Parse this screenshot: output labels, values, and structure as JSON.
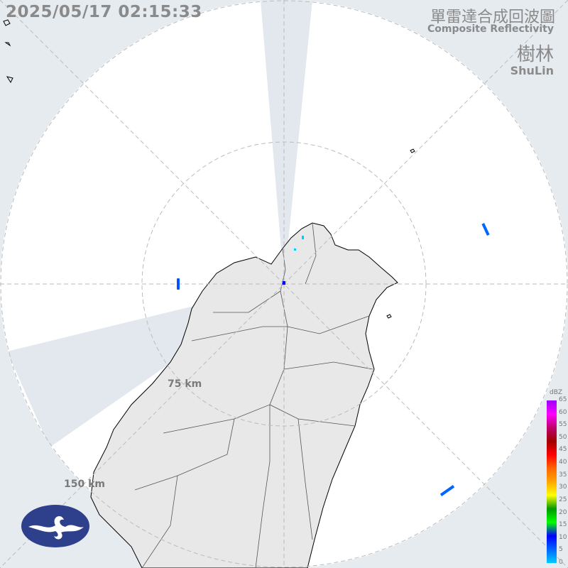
{
  "timestamp": "2025/05/17 02:15:33",
  "title_zh": "單雷達合成回波圖",
  "title_en": "Composite Reflectivity",
  "site_zh": "樹林",
  "site_en": "ShuLin",
  "range_rings": [
    {
      "label": "75 km"
    },
    {
      "label": "150 km"
    }
  ],
  "legend": {
    "unit": "dBZ",
    "ticks": [
      "65",
      "60",
      "55",
      "50",
      "45",
      "40",
      "35",
      "30",
      "25",
      "20",
      "15",
      "10",
      "5",
      "0"
    ],
    "colors": [
      "#9b00ff",
      "#ff00ff",
      "#c0006a",
      "#a00000",
      "#ff0000",
      "#ff6600",
      "#ffa500",
      "#ffff00",
      "#009900",
      "#00ff00",
      "#0000ff",
      "#0066ff",
      "#00ccff"
    ]
  },
  "logo": "Central Weather Administration logo",
  "colors": {
    "background": "#e6ebf0",
    "coverage": "#ffffff",
    "land": "#e8e8e8",
    "blocked": "#e3e8ee"
  }
}
